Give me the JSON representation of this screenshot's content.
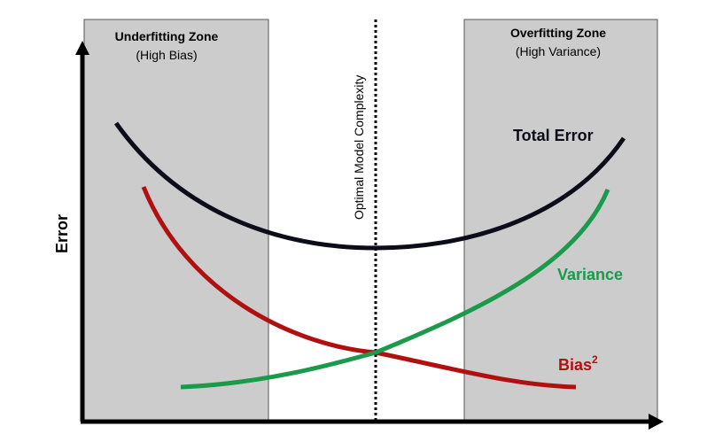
{
  "zones": {
    "underfitting": {
      "title": "Underfitting Zone",
      "subtitle": "(High Bias)"
    },
    "overfitting": {
      "title": "Overfitting Zone",
      "subtitle": "(High Variance)"
    }
  },
  "optimal_label": "Optimal Model Complexity",
  "y_axis_label": "Error",
  "curves": {
    "total_error": {
      "label": "Total Error",
      "color": "#0d0d1a"
    },
    "variance": {
      "label": "Variance",
      "color": "#1a9a4a"
    },
    "bias": {
      "label": "Bias",
      "superscript": "2",
      "color": "#b01010"
    }
  },
  "colors": {
    "zone_fill": "#cccccc",
    "axis": "#000000"
  }
}
